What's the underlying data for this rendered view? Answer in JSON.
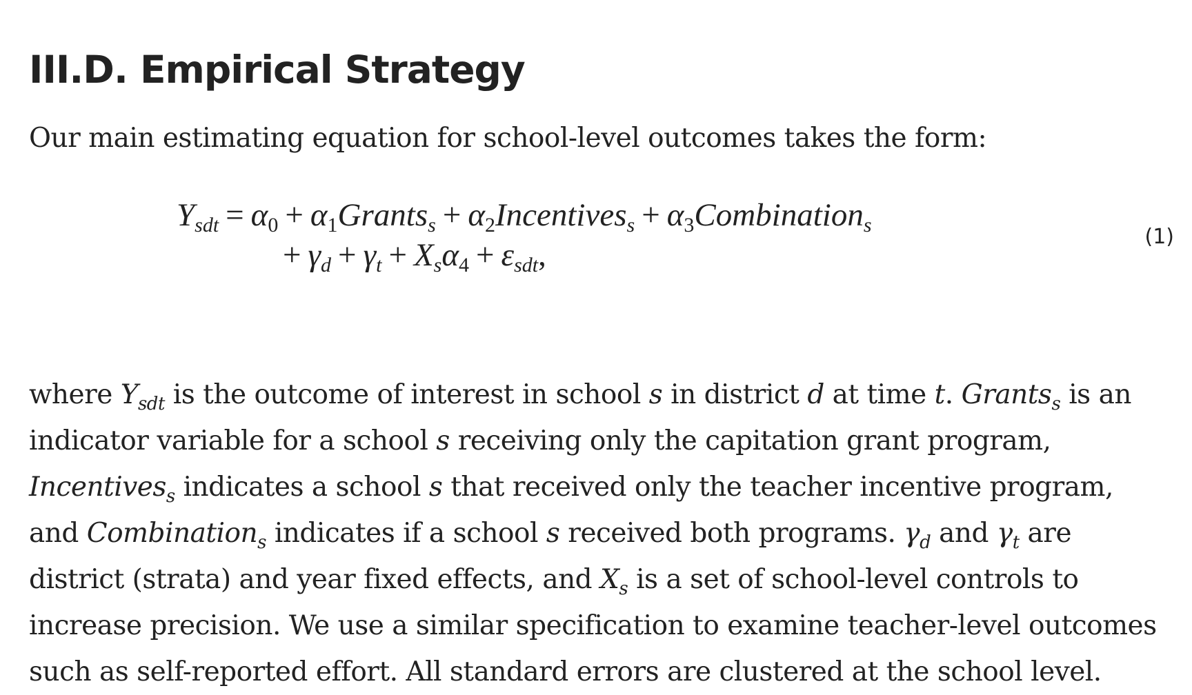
{
  "heading": "III.D. Empirical Strategy",
  "intro": "Our main estimating equation for school-level outcomes takes the form:",
  "equation": {
    "number": "(1)",
    "line1": {
      "lhs": "Y",
      "lhs_sub": "sdt",
      "eq": "=",
      "a0": "α",
      "a0_sub": "0",
      "plus1": "+",
      "a1": "α",
      "a1_sub": "1",
      "v1": "Grants",
      "v1_sub": "s",
      "plus2": "+",
      "a2": "α",
      "a2_sub": "2",
      "v2": "Incentives",
      "v2_sub": "s",
      "plus3": "+",
      "a3": "α",
      "a3_sub": "3",
      "v3": "Combination",
      "v3_sub": "s"
    },
    "line2": {
      "plus0": "+",
      "g1": "γ",
      "g1_sub": "d",
      "plus1": "+",
      "g2": "γ",
      "g2_sub": "t",
      "plus2": "+",
      "x": "X",
      "x_sub": "s",
      "a4": "α",
      "a4_sub": "4",
      "plus3": "+",
      "e": "ε",
      "e_sub": "sdt",
      "comma": ","
    }
  },
  "paragraph": {
    "t1": "where ",
    "y": "Y",
    "y_sub": "sdt",
    "t2": " is the outcome of interest in school ",
    "s1": "s",
    "t3": " in district ",
    "d": "d",
    "t4": " at time ",
    "t": "t",
    "t5": ". ",
    "grants": "Grants",
    "grants_sub": "s",
    "t6": " is an indicator variable for a school ",
    "s2": "s",
    "t7": " receiving only the capitation grant program, ",
    "incentives": "Incentives",
    "incentives_sub": "s",
    "t8": " indicates a school ",
    "s3": "s",
    "t9": " that received only the teacher incentive program, and ",
    "combination": "Combination",
    "combination_sub": "s",
    "t10": " indicates if a school ",
    "s4": "s",
    "t11": " received both programs. ",
    "gd": "γ",
    "gd_sub": "d",
    "t12": " and ",
    "gt": "γ",
    "gt_sub": "t",
    "t13": " are district (strata) and year fixed effects, and ",
    "xs": "X",
    "xs_sub": "s",
    "t14": " is a set of school-level controls to increase precision. We use a similar specification to examine teacher-level outcomes such as self-reported effort. All standard errors are clustered at the school level."
  }
}
